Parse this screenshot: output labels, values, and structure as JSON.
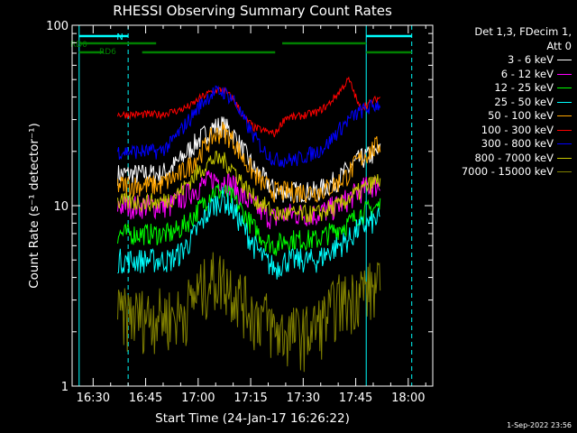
{
  "colors": {
    "background": "#000000",
    "axis": "#ffffff",
    "saa_cyan": "#00ffff",
    "night_green": "#008000"
  },
  "footer": {
    "date": "1-Sep-2022 23:56"
  },
  "legend": {
    "header_line1": "Det 1,3, FDecim 1,",
    "header_line2": "Att 0"
  },
  "chart_data": {
    "type": "line",
    "title": "RHESSI Observing Summary Count Rates",
    "xlabel": "Start Time (24-Jan-17 16:26:22)",
    "ylabel": "Count Rate (s⁻¹ detector⁻¹)",
    "y_scale": "log",
    "ylim": [
      1,
      100
    ],
    "xlim": [
      "16:24",
      "18:07"
    ],
    "x_ticks": [
      "16:30",
      "16:45",
      "17:00",
      "17:15",
      "17:30",
      "17:45",
      "18:00"
    ],
    "y_ticks": [
      "1",
      "10",
      "100"
    ],
    "markers": [
      {
        "label": "N",
        "x_start": "16:26",
        "x_end": "16:40",
        "color": "#00ffff"
      },
      {
        "label": "RD0",
        "color": "#008000"
      },
      {
        "label": "RD6",
        "color": "#008000"
      }
    ],
    "saa_intervals": [
      [
        "16:26",
        "16:40"
      ],
      [
        "17:48",
        "18:01"
      ]
    ],
    "night_bars_upper": [
      [
        "16:26",
        "16:48"
      ],
      [
        "17:24",
        "17:48"
      ]
    ],
    "night_bars_lower": [
      [
        "16:26",
        "16:33"
      ],
      [
        "16:44",
        "17:22"
      ],
      [
        "17:48",
        "18:01"
      ]
    ],
    "x": [
      "16:37",
      "16:40",
      "16:43",
      "16:46",
      "16:49",
      "16:52",
      "16:55",
      "16:58",
      "17:01",
      "17:04",
      "17:07",
      "17:10",
      "17:13",
      "17:16",
      "17:19",
      "17:22",
      "17:25",
      "17:28",
      "17:31",
      "17:34",
      "17:37",
      "17:40",
      "17:43",
      "17:46",
      "17:49",
      "17:52"
    ],
    "series": [
      {
        "name": "3 - 6 keV",
        "color": "#ffffff",
        "values": [
          15,
          15,
          15,
          15,
          15,
          16,
          18,
          21,
          24,
          27,
          28,
          25,
          20,
          16,
          14,
          12,
          12,
          12,
          12,
          12,
          13,
          14,
          16,
          18,
          19,
          20
        ]
      },
      {
        "name": "6 - 12 keV",
        "color": "#ff00ff",
        "values": [
          10,
          10,
          10,
          10,
          10,
          10,
          11,
          12,
          13,
          14,
          14,
          13,
          11,
          10,
          9,
          8.5,
          9,
          9,
          9,
          9,
          9.5,
          10,
          11,
          12,
          13,
          13
        ]
      },
      {
        "name": "12 - 25 keV",
        "color": "#00ff00",
        "values": [
          7,
          7,
          7,
          7,
          7,
          7,
          7.5,
          8.5,
          10,
          12,
          12,
          11,
          9,
          7.5,
          6.5,
          6,
          6.5,
          6.5,
          6.5,
          6.5,
          7,
          7.5,
          8,
          9,
          9.5,
          10
        ]
      },
      {
        "name": "25 - 50 keV",
        "color": "#00ffff",
        "values": [
          5,
          5,
          5,
          5,
          5,
          5,
          5.5,
          6.5,
          8,
          10,
          11,
          9.5,
          7.5,
          6,
          5,
          4.5,
          5,
          5,
          5,
          5,
          5.5,
          6,
          6.5,
          7.5,
          8,
          8.5
        ]
      },
      {
        "name": "50 - 100 keV",
        "color": "#ffa500",
        "values": [
          13,
          13,
          13,
          13,
          13,
          14,
          15,
          17,
          20,
          24,
          26,
          23,
          18,
          15,
          13,
          12,
          12,
          12,
          12,
          12,
          12.5,
          13.5,
          15,
          18,
          20,
          22
        ]
      },
      {
        "name": "100 - 300 keV",
        "color": "#ff0000",
        "values": [
          32,
          32,
          32,
          32,
          32,
          33,
          34,
          36,
          40,
          43,
          44,
          39,
          31,
          27,
          26,
          25,
          31,
          31,
          32,
          33,
          36,
          42,
          50,
          35,
          37,
          40
        ]
      },
      {
        "name": "300 - 800 keV",
        "color": "#0000ff",
        "values": [
          20,
          20,
          20,
          20,
          20,
          22,
          26,
          31,
          37,
          42,
          43,
          39,
          30,
          24,
          20,
          18,
          18,
          18,
          19,
          20,
          22,
          26,
          30,
          33,
          35,
          37
        ]
      },
      {
        "name": "800 - 7000 keV",
        "color": "#c8c800",
        "values": [
          10.5,
          10.5,
          10.5,
          10.5,
          10.5,
          11,
          12,
          14,
          16,
          18,
          18,
          16,
          13,
          11,
          10,
          9,
          9,
          9,
          9,
          9,
          9.5,
          10,
          11,
          12,
          13,
          14
        ]
      },
      {
        "name": "7000 - 15000 keV",
        "color": "#808000",
        "values": [
          2.5,
          2.5,
          2.5,
          2.5,
          2.5,
          2.5,
          2.5,
          3,
          3.5,
          4,
          4,
          3.5,
          3,
          2.5,
          2.5,
          2,
          2,
          2,
          2,
          2.2,
          2.5,
          3,
          3,
          3.5,
          3.5,
          3.5
        ]
      }
    ]
  }
}
